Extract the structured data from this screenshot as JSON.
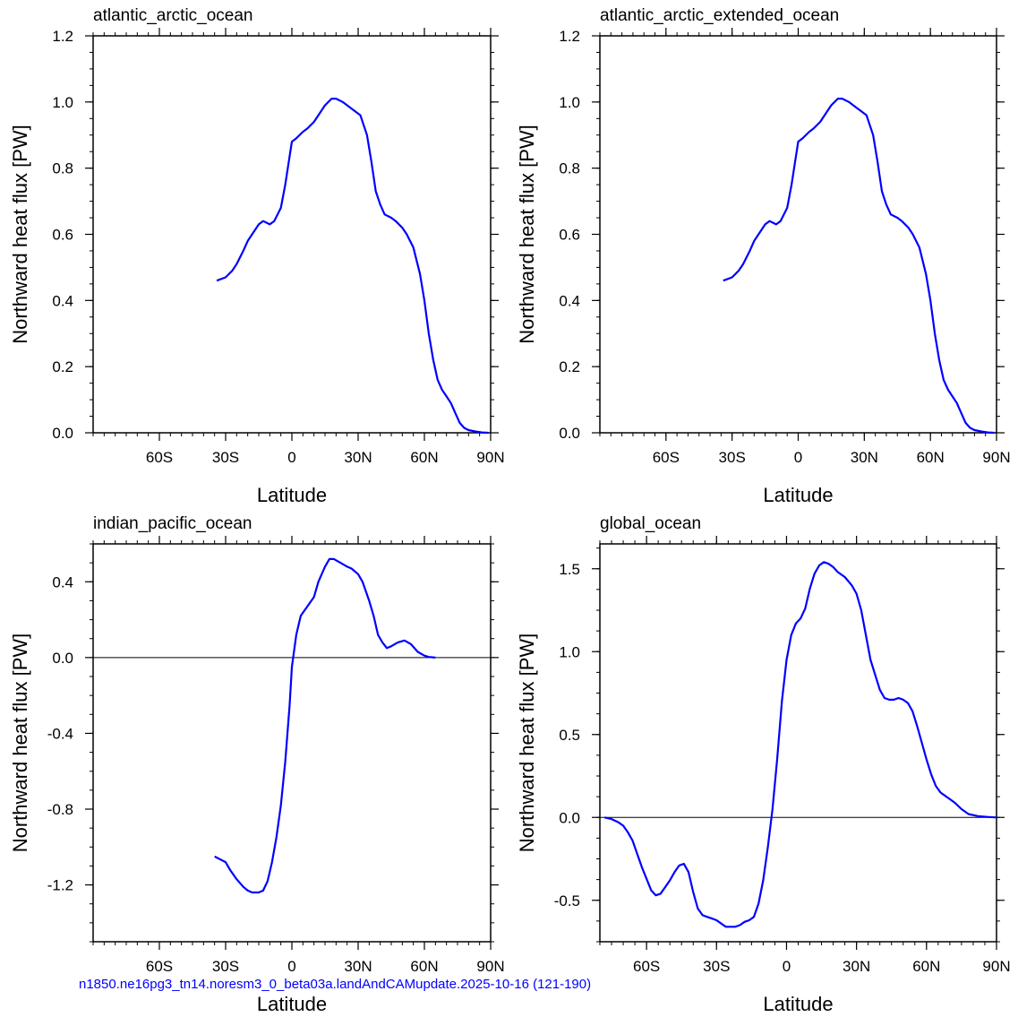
{
  "footer": {
    "caption": "n1850.ne16pg3_tn14.noresm3_0_beta03a.landAndCAMupdate.2025-10-16 (121-190)",
    "caption_color": "#0000ff"
  },
  "line_color": "#0000ff",
  "chart_data": [
    {
      "type": "line",
      "title": "atlantic_arctic_ocean",
      "xlabel": "Latitude",
      "ylabel": "Northward heat flux [PW]",
      "xlim": [
        -90,
        90
      ],
      "ylim": [
        0.0,
        1.2
      ],
      "xticks": [
        {
          "v": -60,
          "label": "60S"
        },
        {
          "v": -30,
          "label": "30S"
        },
        {
          "v": 0,
          "label": "0"
        },
        {
          "v": 30,
          "label": "30N"
        },
        {
          "v": 60,
          "label": "60N"
        },
        {
          "v": 90,
          "label": "90N"
        }
      ],
      "yticks": [
        {
          "v": 0.0,
          "label": "0.0"
        },
        {
          "v": 0.2,
          "label": "0.2"
        },
        {
          "v": 0.4,
          "label": "0.4"
        },
        {
          "v": 0.6,
          "label": "0.6"
        },
        {
          "v": 0.8,
          "label": "0.8"
        },
        {
          "v": 1.0,
          "label": "1.0"
        },
        {
          "v": 1.2,
          "label": "1.2"
        }
      ],
      "zero_line": false,
      "x": [
        -34,
        -30,
        -27,
        -25,
        -22,
        -20,
        -18,
        -15,
        -13,
        -10,
        -8,
        -5,
        -3,
        0,
        2,
        5,
        7,
        10,
        12,
        15,
        18,
        20,
        23,
        25,
        27,
        29,
        31,
        34,
        36,
        38,
        40,
        42,
        45,
        47,
        50,
        52,
        55,
        58,
        60,
        62,
        64,
        66,
        68,
        70,
        72,
        74,
        76,
        78,
        80,
        83,
        86,
        89
      ],
      "y": [
        0.46,
        0.47,
        0.49,
        0.51,
        0.55,
        0.58,
        0.6,
        0.63,
        0.64,
        0.63,
        0.64,
        0.68,
        0.75,
        0.88,
        0.89,
        0.91,
        0.92,
        0.94,
        0.96,
        0.99,
        1.01,
        1.01,
        1.0,
        0.99,
        0.98,
        0.97,
        0.96,
        0.9,
        0.82,
        0.73,
        0.69,
        0.66,
        0.65,
        0.64,
        0.62,
        0.6,
        0.56,
        0.48,
        0.4,
        0.3,
        0.22,
        0.16,
        0.13,
        0.11,
        0.09,
        0.06,
        0.03,
        0.015,
        0.008,
        0.004,
        0.001,
        0.0
      ]
    },
    {
      "type": "line",
      "title": "atlantic_arctic_extended_ocean",
      "xlabel": "Latitude",
      "ylabel": "Northward heat flux [PW]",
      "xlim": [
        -90,
        90
      ],
      "ylim": [
        0.0,
        1.2
      ],
      "xticks": [
        {
          "v": -60,
          "label": "60S"
        },
        {
          "v": -30,
          "label": "30S"
        },
        {
          "v": 0,
          "label": "0"
        },
        {
          "v": 30,
          "label": "30N"
        },
        {
          "v": 60,
          "label": "60N"
        },
        {
          "v": 90,
          "label": "90N"
        }
      ],
      "yticks": [
        {
          "v": 0.0,
          "label": "0.0"
        },
        {
          "v": 0.2,
          "label": "0.2"
        },
        {
          "v": 0.4,
          "label": "0.4"
        },
        {
          "v": 0.6,
          "label": "0.6"
        },
        {
          "v": 0.8,
          "label": "0.8"
        },
        {
          "v": 1.0,
          "label": "1.0"
        },
        {
          "v": 1.2,
          "label": "1.2"
        }
      ],
      "zero_line": false,
      "x": [
        -34,
        -30,
        -27,
        -25,
        -22,
        -20,
        -18,
        -15,
        -13,
        -10,
        -8,
        -5,
        -3,
        0,
        2,
        5,
        7,
        10,
        12,
        15,
        18,
        20,
        23,
        25,
        27,
        29,
        31,
        34,
        36,
        38,
        40,
        42,
        45,
        47,
        50,
        52,
        55,
        58,
        60,
        62,
        64,
        66,
        68,
        70,
        72,
        74,
        76,
        78,
        80,
        83,
        86,
        89
      ],
      "y": [
        0.46,
        0.47,
        0.49,
        0.51,
        0.55,
        0.58,
        0.6,
        0.63,
        0.64,
        0.63,
        0.64,
        0.68,
        0.75,
        0.88,
        0.89,
        0.91,
        0.92,
        0.94,
        0.96,
        0.99,
        1.01,
        1.01,
        1.0,
        0.99,
        0.98,
        0.97,
        0.96,
        0.9,
        0.82,
        0.73,
        0.69,
        0.66,
        0.65,
        0.64,
        0.62,
        0.6,
        0.56,
        0.48,
        0.4,
        0.3,
        0.22,
        0.16,
        0.13,
        0.11,
        0.09,
        0.06,
        0.03,
        0.015,
        0.008,
        0.004,
        0.001,
        0.0
      ]
    },
    {
      "type": "line",
      "title": "indian_pacific_ocean",
      "xlabel": "Latitude",
      "ylabel": "Northward heat flux [PW]",
      "xlim": [
        -90,
        90
      ],
      "ylim": [
        -1.5,
        0.6
      ],
      "xticks": [
        {
          "v": -60,
          "label": "60S"
        },
        {
          "v": -30,
          "label": "30S"
        },
        {
          "v": 0,
          "label": "0"
        },
        {
          "v": 30,
          "label": "30N"
        },
        {
          "v": 60,
          "label": "60N"
        },
        {
          "v": 90,
          "label": "90N"
        }
      ],
      "yticks": [
        {
          "v": -1.2,
          "label": "-1.2"
        },
        {
          "v": -0.8,
          "label": "-0.8"
        },
        {
          "v": -0.4,
          "label": "-0.4"
        },
        {
          "v": 0.0,
          "label": "0.0"
        },
        {
          "v": 0.4,
          "label": "0.4"
        }
      ],
      "zero_line": true,
      "x": [
        -35,
        -30,
        -28,
        -25,
        -22,
        -20,
        -18,
        -15,
        -13,
        -11,
        -9,
        -7,
        -5,
        -3,
        -1,
        0,
        2,
        4,
        7,
        10,
        12,
        15,
        17,
        19,
        22,
        25,
        27,
        30,
        32,
        35,
        37,
        39,
        41,
        43,
        45,
        48,
        51,
        54,
        57,
        60,
        62,
        65
      ],
      "y": [
        -1.05,
        -1.08,
        -1.12,
        -1.17,
        -1.21,
        -1.23,
        -1.24,
        -1.24,
        -1.23,
        -1.18,
        -1.08,
        -0.95,
        -0.78,
        -0.55,
        -0.25,
        -0.05,
        0.12,
        0.22,
        0.27,
        0.32,
        0.4,
        0.48,
        0.52,
        0.52,
        0.5,
        0.48,
        0.47,
        0.44,
        0.4,
        0.3,
        0.22,
        0.12,
        0.08,
        0.05,
        0.06,
        0.08,
        0.09,
        0.07,
        0.03,
        0.01,
        0.003,
        0.0
      ]
    },
    {
      "type": "line",
      "title": "global_ocean",
      "xlabel": "Latitude",
      "ylabel": "Northward heat flux [PW]",
      "xlim": [
        -80,
        90
      ],
      "ylim": [
        -0.75,
        1.65
      ],
      "xticks": [
        {
          "v": -60,
          "label": "60S"
        },
        {
          "v": -30,
          "label": "30S"
        },
        {
          "v": 0,
          "label": "0"
        },
        {
          "v": 30,
          "label": "30N"
        },
        {
          "v": 60,
          "label": "60N"
        },
        {
          "v": 90,
          "label": "90N"
        }
      ],
      "yticks": [
        {
          "v": -0.5,
          "label": "-0.5"
        },
        {
          "v": 0.0,
          "label": "0.0"
        },
        {
          "v": 0.5,
          "label": "0.5"
        },
        {
          "v": 1.0,
          "label": "1.0"
        },
        {
          "v": 1.5,
          "label": "1.5"
        }
      ],
      "zero_line": true,
      "x": [
        -78,
        -75,
        -72,
        -70,
        -68,
        -66,
        -64,
        -62,
        -60,
        -58,
        -56,
        -54,
        -52,
        -50,
        -48,
        -46,
        -44,
        -42,
        -40,
        -38,
        -36,
        -34,
        -32,
        -30,
        -28,
        -26,
        -24,
        -22,
        -20,
        -18,
        -16,
        -14,
        -12,
        -10,
        -8,
        -6,
        -4,
        -2,
        0,
        2,
        4,
        6,
        8,
        10,
        12,
        14,
        16,
        18,
        20,
        22,
        25,
        28,
        30,
        32,
        34,
        36,
        38,
        40,
        42,
        44,
        46,
        48,
        50,
        52,
        54,
        56,
        58,
        60,
        62,
        64,
        66,
        68,
        70,
        72,
        75,
        78,
        82,
        86,
        90
      ],
      "y": [
        0.0,
        -0.01,
        -0.03,
        -0.05,
        -0.09,
        -0.14,
        -0.22,
        -0.3,
        -0.37,
        -0.44,
        -0.47,
        -0.46,
        -0.42,
        -0.38,
        -0.33,
        -0.29,
        -0.28,
        -0.33,
        -0.45,
        -0.55,
        -0.59,
        -0.6,
        -0.61,
        -0.62,
        -0.64,
        -0.66,
        -0.66,
        -0.66,
        -0.65,
        -0.63,
        -0.62,
        -0.6,
        -0.52,
        -0.38,
        -0.18,
        0.05,
        0.35,
        0.7,
        0.95,
        1.1,
        1.17,
        1.2,
        1.26,
        1.38,
        1.47,
        1.52,
        1.54,
        1.53,
        1.51,
        1.48,
        1.45,
        1.4,
        1.35,
        1.25,
        1.1,
        0.95,
        0.86,
        0.77,
        0.72,
        0.71,
        0.71,
        0.72,
        0.71,
        0.69,
        0.64,
        0.55,
        0.45,
        0.35,
        0.26,
        0.19,
        0.15,
        0.13,
        0.11,
        0.09,
        0.05,
        0.02,
        0.008,
        0.003,
        0.0
      ]
    }
  ]
}
